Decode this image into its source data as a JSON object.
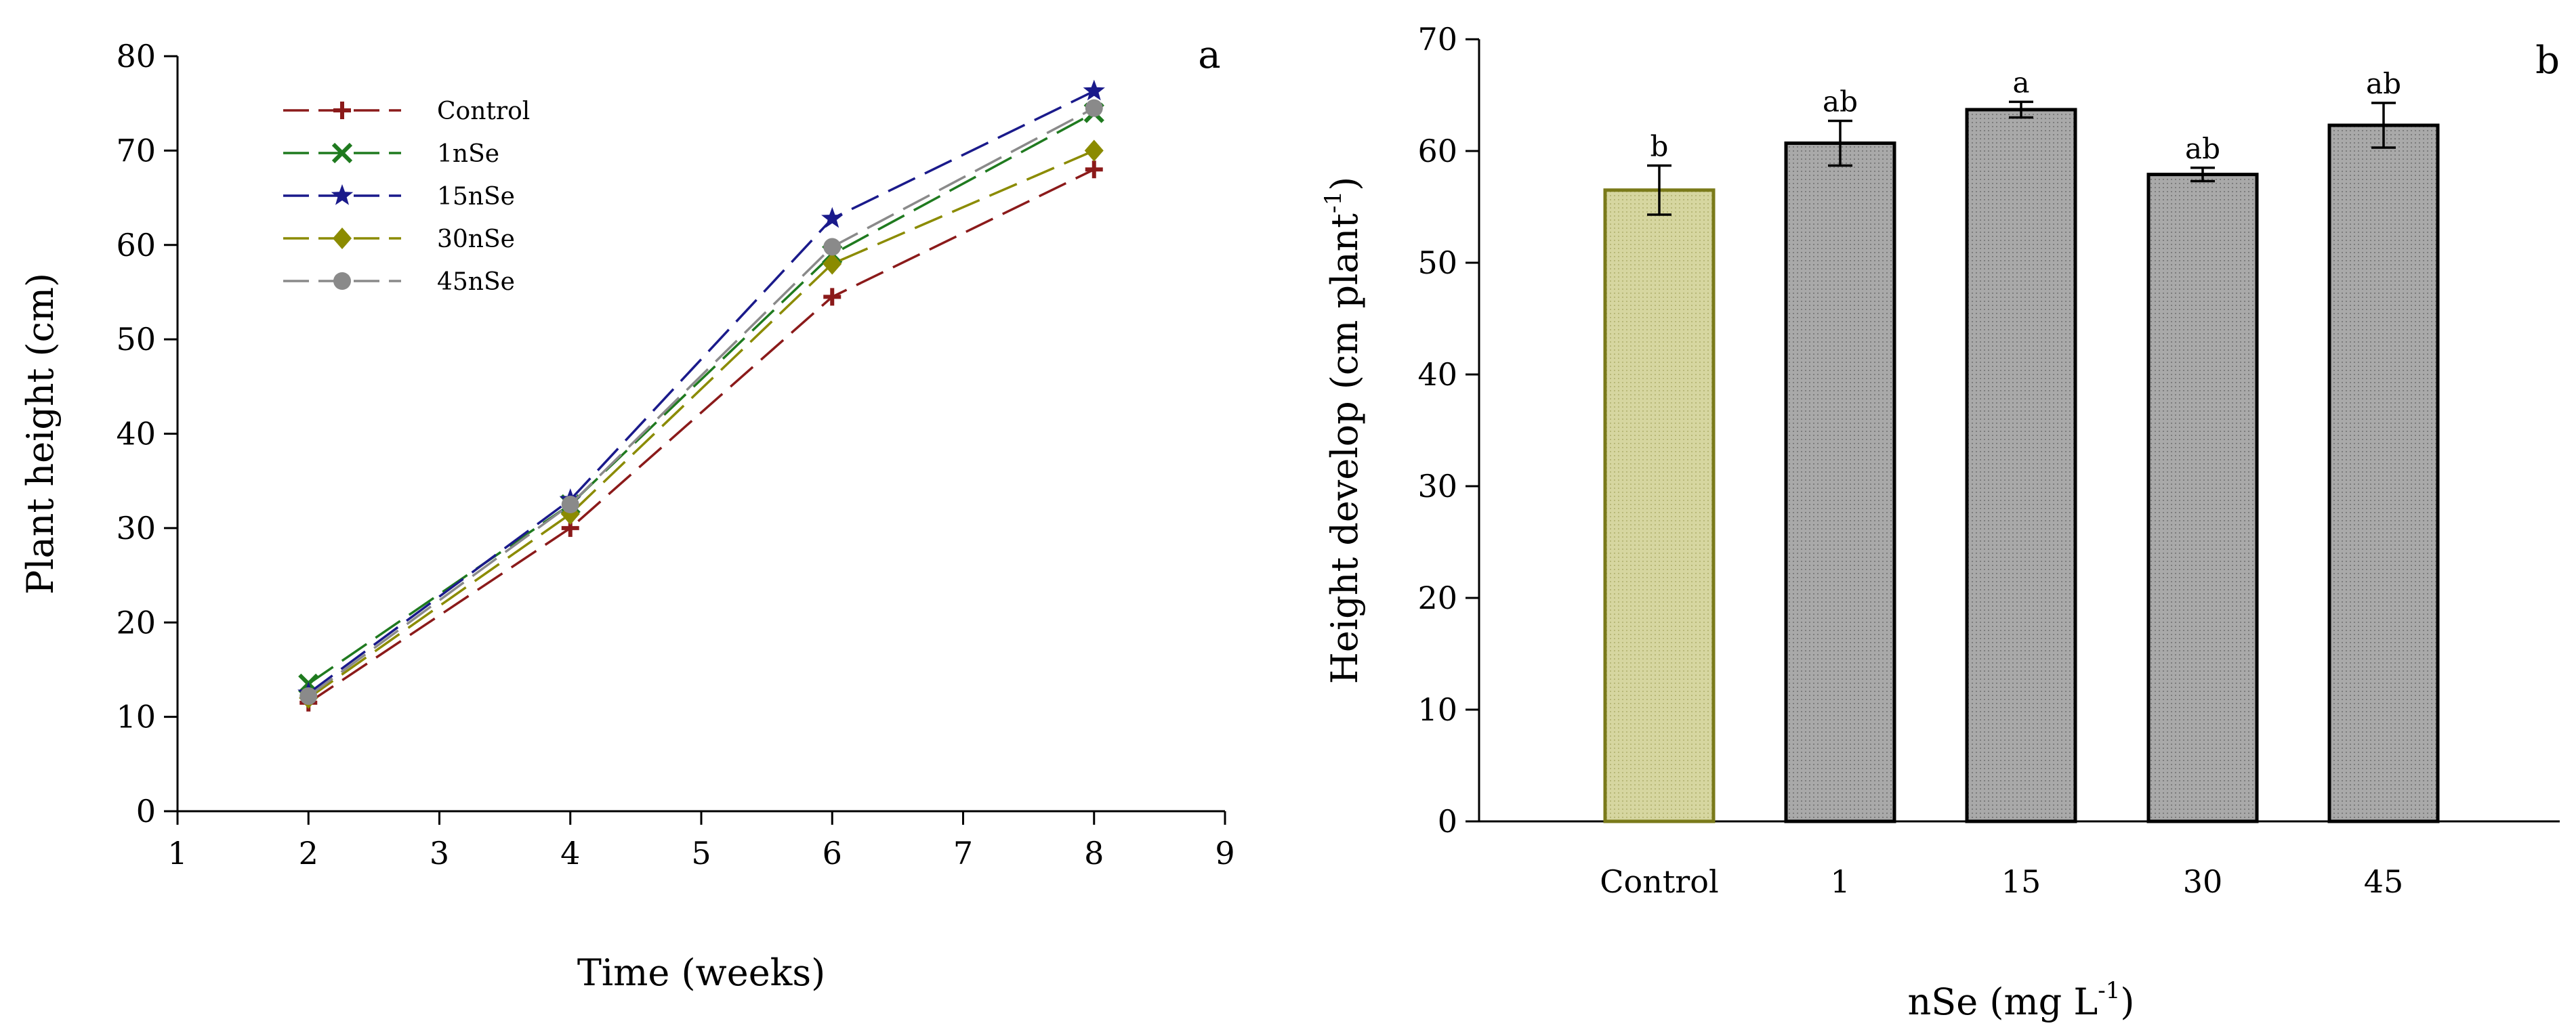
{
  "chart_data": [
    {
      "type": "line",
      "panel_label": "a",
      "xlabel": "Time (weeks)",
      "ylabel": "Plant height (cm)",
      "xlim": [
        1,
        9
      ],
      "ylim": [
        0,
        80
      ],
      "x_ticks": [
        1,
        2,
        3,
        4,
        5,
        6,
        7,
        8,
        9
      ],
      "y_ticks": [
        0,
        10,
        20,
        30,
        40,
        50,
        60,
        70,
        80
      ],
      "x": [
        2,
        4,
        6,
        8
      ],
      "series": [
        {
          "name": "Control",
          "color": "#8b1a1a",
          "marker": "plus",
          "values": [
            11.5,
            30.0,
            54.5,
            68.0
          ]
        },
        {
          "name": "1nSe",
          "color": "#1f7a1f",
          "marker": "cross",
          "values": [
            13.5,
            32.5,
            59.0,
            74.0
          ]
        },
        {
          "name": "15nSe",
          "color": "#1a1a8b",
          "marker": "star",
          "values": [
            12.5,
            33.0,
            62.8,
            76.3
          ]
        },
        {
          "name": "30nSe",
          "color": "#8b8b00",
          "marker": "diamond",
          "values": [
            12.0,
            31.5,
            58.0,
            70.0
          ]
        },
        {
          "name": "45nSe",
          "color": "#8a8a8a",
          "marker": "circle",
          "values": [
            12.2,
            32.5,
            59.8,
            74.5
          ]
        }
      ],
      "legend_position": "top-left"
    },
    {
      "type": "bar",
      "panel_label": "b",
      "xlabel_main": "nSe (mg L",
      "xlabel_sup": "-1",
      "xlabel_tail": ")",
      "ylabel_main": "Height develop (cm plant",
      "ylabel_sup": "-1",
      "ylabel_tail": ")",
      "ylim": [
        0,
        70
      ],
      "y_ticks": [
        0,
        10,
        20,
        30,
        40,
        50,
        60,
        70
      ],
      "categories": [
        "Control",
        "1",
        "15",
        "30",
        "45"
      ],
      "values": [
        56.5,
        60.7,
        63.7,
        57.9,
        62.3
      ],
      "errors": [
        2.2,
        2.0,
        0.7,
        0.6,
        2.0
      ],
      "letters": [
        "b",
        "ab",
        "a",
        "ab",
        "ab"
      ],
      "colors": {
        "control_fill": "#d6d6a0",
        "control_stroke": "#7a7a1a",
        "treatment_fill": "#a9a9a9",
        "treatment_stroke": "#000000"
      }
    }
  ]
}
